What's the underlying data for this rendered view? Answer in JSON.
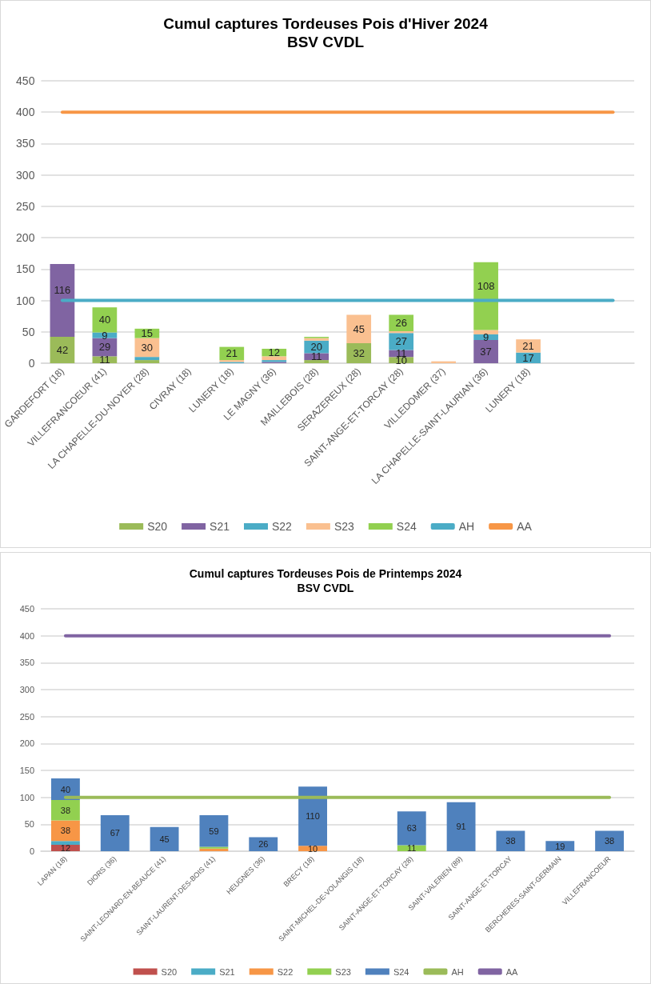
{
  "chart_data": [
    {
      "type": "bar",
      "title": "Cumul captures Tordeuses Pois d'Hiver 2024",
      "subtitle": "BSV CVDL",
      "stacked": true,
      "grid": "y",
      "legend": "bottom",
      "categories": [
        "GARDEFORT (18)",
        "VILLEFRANCOEUR (41)",
        "LA CHAPELLE-DU-NOYER (28)",
        "CIVRAY (18)",
        "LUNERY (18)",
        "LE MAGNY (36)",
        "MAILLEBOIS (28)",
        "SERAZEREUX (28)",
        "SAINT-ANGE-ET-TORCAY (28)",
        "VILLEDOMER (37)",
        "LA CHAPELLE-SAINT-LAURIAN (36)",
        "LUNERY (18)",
        null,
        null
      ],
      "ylim": [
        0,
        450
      ],
      "yticks": [
        0,
        50,
        100,
        150,
        200,
        250,
        300,
        350,
        400,
        450
      ],
      "series": [
        {
          "name": "S20",
          "color": "#9bbb59",
          "values": [
            42,
            11,
            5,
            0,
            0,
            0,
            5,
            32,
            10,
            0,
            null,
            null,
            null,
            null
          ],
          "value_labels": [
            "42",
            "11",
            null,
            null,
            null,
            null,
            null,
            "32",
            "10",
            null,
            null,
            null,
            null,
            null
          ]
        },
        {
          "name": "S21",
          "color": "#8064a2",
          "values": [
            116,
            29,
            0,
            0,
            0,
            2,
            11,
            null,
            11,
            0,
            37,
            null,
            null,
            null
          ],
          "value_labels": [
            "116",
            "29",
            null,
            null,
            null,
            null,
            "11",
            null,
            "11",
            null,
            "37",
            null,
            null,
            null
          ]
        },
        {
          "name": "S22",
          "color": "#4bacc6",
          "values": [
            0,
            9,
            5,
            0,
            2,
            3,
            20,
            null,
            27,
            0,
            9,
            17,
            null,
            null
          ],
          "value_labels": [
            null,
            "9",
            null,
            null,
            null,
            null,
            "20",
            null,
            "27",
            null,
            "9",
            "17",
            null,
            null
          ]
        },
        {
          "name": "S23",
          "color": "#fac090",
          "values": [
            null,
            0,
            30,
            0,
            3,
            6,
            4,
            45,
            3,
            3,
            7,
            21,
            null,
            null
          ],
          "value_labels": [
            null,
            null,
            "30",
            null,
            null,
            null,
            null,
            "45",
            null,
            null,
            null,
            "21",
            null,
            null
          ]
        },
        {
          "name": "S24",
          "color": "#92d050",
          "values": [
            null,
            40,
            15,
            null,
            21,
            12,
            2,
            null,
            26,
            null,
            108,
            null,
            null,
            null
          ],
          "value_labels": [
            null,
            "40",
            "15",
            null,
            "21",
            "12",
            null,
            null,
            "26",
            null,
            "108",
            null,
            null,
            null
          ]
        },
        {
          "name": "AH",
          "type": "line",
          "color": "#4bacc6",
          "values": [
            100,
            100,
            100,
            100,
            100,
            100,
            100,
            100,
            100,
            100,
            100,
            100,
            100,
            100
          ]
        },
        {
          "name": "AA",
          "type": "line",
          "color": "#f79646",
          "values": [
            400,
            400,
            400,
            400,
            400,
            400,
            400,
            400,
            400,
            400,
            400,
            400,
            400,
            400
          ]
        }
      ]
    },
    {
      "type": "bar",
      "title": "Cumul captures Tordeuses Pois de Printemps 2024",
      "subtitle": "BSV CVDL",
      "stacked": true,
      "grid": "y",
      "legend": "bottom",
      "categories": [
        "LAPAN (18)",
        "DIORS (36)",
        "SAINT-LEONARD-EN-BEAUCE (41)",
        "SAINT-LAURENT-DES-BOIS (41)",
        "HEUGNES (36)",
        "BRECY (18)",
        "SAINT-MICHEL-DE-VOLANGIS (18)",
        "SAINT-ANGE-ET-TORCAY (28)",
        "SAINT-VALERIEN (89)",
        "SAINT-ANGE-ET-TORCAY",
        "BERCHERES-SAINT-GERMAIN",
        "VILLEFRANCOEUR"
      ],
      "ylim": [
        0,
        450
      ],
      "yticks": [
        0,
        50,
        100,
        150,
        200,
        250,
        300,
        350,
        400,
        450
      ],
      "series": [
        {
          "name": "S20",
          "color": "#c0504d",
          "values": [
            12,
            0,
            0,
            0,
            0,
            null,
            0,
            null,
            null,
            null,
            null,
            null
          ],
          "value_labels": [
            "12",
            null,
            null,
            null,
            null,
            null,
            null,
            null,
            null,
            null,
            null,
            null
          ]
        },
        {
          "name": "S21",
          "color": "#4bacc6",
          "values": [
            7,
            0,
            0,
            0,
            0,
            null,
            0,
            null,
            null,
            null,
            null,
            null
          ],
          "value_labels": [
            null,
            null,
            null,
            null,
            null,
            null,
            null,
            null,
            null,
            null,
            null,
            null
          ]
        },
        {
          "name": "S22",
          "color": "#f79646",
          "values": [
            38,
            0,
            0,
            5,
            0,
            10,
            0,
            null,
            null,
            null,
            null,
            null
          ],
          "value_labels": [
            "38",
            null,
            null,
            null,
            null,
            "10",
            null,
            null,
            null,
            null,
            null,
            null
          ]
        },
        {
          "name": "S23",
          "color": "#92d050",
          "values": [
            38,
            0,
            0,
            3,
            0,
            null,
            0,
            11,
            null,
            null,
            null,
            null
          ],
          "value_labels": [
            "38",
            null,
            null,
            null,
            null,
            null,
            null,
            "11",
            null,
            null,
            null,
            null
          ]
        },
        {
          "name": "S24",
          "color": "#4f81bd",
          "values": [
            40,
            67,
            45,
            59,
            26,
            110,
            null,
            63,
            91,
            38,
            19,
            38
          ],
          "value_labels": [
            "40",
            "67",
            "45",
            "59",
            "26",
            "110",
            null,
            "63",
            "91",
            "38",
            "19",
            "38"
          ]
        },
        {
          "name": "AH",
          "type": "line",
          "color": "#9bbb59",
          "values": [
            100,
            100,
            100,
            100,
            100,
            100,
            100,
            100,
            100,
            100,
            100,
            100
          ]
        },
        {
          "name": "AA",
          "type": "line",
          "color": "#8064a2",
          "values": [
            400,
            400,
            400,
            400,
            400,
            400,
            400,
            400,
            400,
            400,
            400,
            400
          ]
        }
      ]
    }
  ]
}
